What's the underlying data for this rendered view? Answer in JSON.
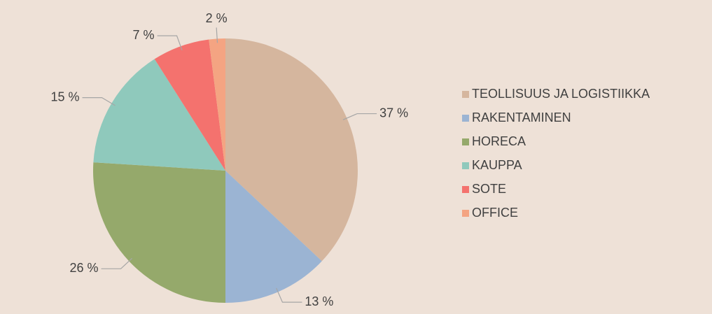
{
  "chart_data": {
    "type": "pie",
    "categories": [
      "TEOLLISUUS JA LOGISTIIKKA",
      "RAKENTAMINEN",
      "HORECA",
      "KAUPPA",
      "SOTE",
      "OFFICE"
    ],
    "values": [
      37,
      13,
      26,
      15,
      7,
      2
    ],
    "value_labels": [
      "37 %",
      "13 %",
      "26 %",
      "15 %",
      "7 %",
      "2 %"
    ],
    "colors": [
      "#d5b69e",
      "#9bb4d3",
      "#95a96b",
      "#8fc9bc",
      "#f4726e",
      "#f4a482"
    ],
    "legend": "right"
  }
}
